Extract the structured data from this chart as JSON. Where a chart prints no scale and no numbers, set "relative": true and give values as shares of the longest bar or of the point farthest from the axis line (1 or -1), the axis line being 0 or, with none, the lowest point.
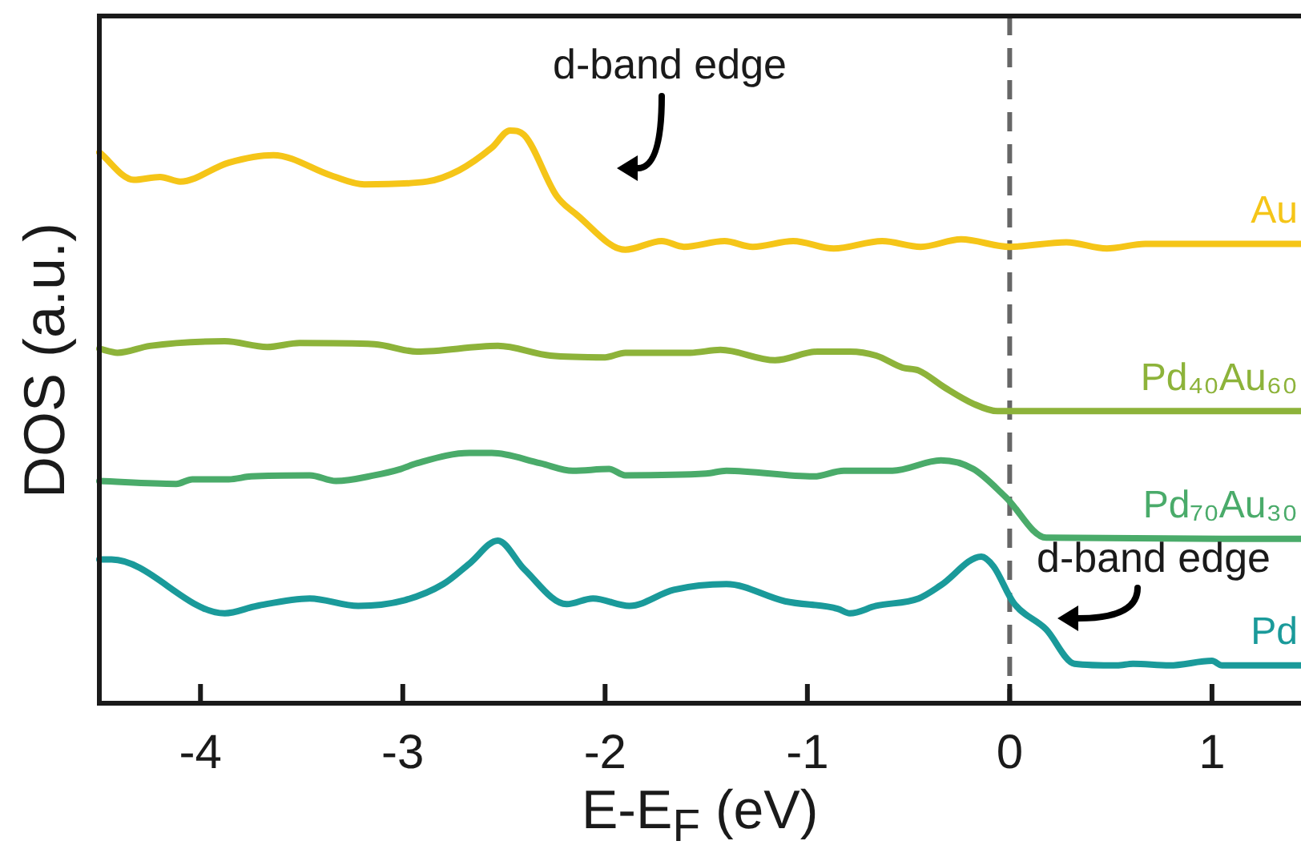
{
  "chart_data": {
    "type": "line",
    "relative": true,
    "xlabel": "E-E$_{F}$ (eV)",
    "ylabel": "DOS (a.u.)",
    "xlim": [
      -4.5,
      1.44
    ],
    "xticks": [
      -4,
      -3,
      -2,
      -1,
      0,
      1
    ],
    "legend": false,
    "marker": "none",
    "line_style": "solid",
    "series": [
      {
        "name": "Au",
        "color": "#f5c518",
        "x": [
          -4.5,
          -4.33,
          -4.2,
          -4.1,
          -3.86,
          -3.64,
          -3.35,
          -3.19,
          -2.88,
          -2.72,
          -2.56,
          -2.47,
          -2.4,
          -2.24,
          -2.14,
          -1.9,
          -1.72,
          -1.61,
          -1.41,
          -1.27,
          -1.07,
          -0.87,
          -0.63,
          -0.44,
          -0.24,
          0,
          0.28,
          0.48,
          0.67,
          1.44
        ],
        "values": [
          0.962,
          0.914,
          0.919,
          0.911,
          0.944,
          0.957,
          0.921,
          0.906,
          0.911,
          0.931,
          0.97,
          1.0,
          0.992,
          0.886,
          0.853,
          0.792,
          0.807,
          0.797,
          0.807,
          0.797,
          0.807,
          0.794,
          0.807,
          0.797,
          0.81,
          0.797,
          0.805,
          0.794,
          0.802,
          0.802
        ]
      },
      {
        "name": "Pd₄₀Au₆₀",
        "color": "#8db33a",
        "x": [
          -4.5,
          -4.41,
          -4.25,
          -3.88,
          -3.67,
          -3.51,
          -3.14,
          -2.93,
          -2.53,
          -2.27,
          -2.0,
          -1.9,
          -1.58,
          -1.43,
          -1.16,
          -0.95,
          -0.79,
          -0.66,
          -0.53,
          -0.45,
          -0.32,
          -0.18,
          -0.06,
          1.44
        ],
        "values": [
          0.619,
          0.612,
          0.624,
          0.632,
          0.622,
          0.629,
          0.627,
          0.614,
          0.624,
          0.607,
          0.604,
          0.612,
          0.612,
          0.617,
          0.599,
          0.614,
          0.614,
          0.607,
          0.586,
          0.581,
          0.551,
          0.523,
          0.51,
          0.51
        ]
      },
      {
        "name": "Pd₇₀Au₃₀",
        "color": "#4aab6a",
        "x": [
          -4.5,
          -4.12,
          -4.04,
          -3.86,
          -3.75,
          -3.46,
          -3.33,
          -3.14,
          -3.01,
          -2.93,
          -2.67,
          -2.56,
          -2.32,
          -2.16,
          -1.98,
          -1.9,
          -1.5,
          -1.4,
          -0.97,
          -0.82,
          -0.58,
          -0.34,
          -0.18,
          -0.02,
          0.18,
          1.44
        ],
        "values": [
          0.388,
          0.383,
          0.391,
          0.391,
          0.396,
          0.398,
          0.388,
          0.398,
          0.409,
          0.419,
          0.437,
          0.437,
          0.419,
          0.406,
          0.409,
          0.398,
          0.401,
          0.406,
          0.396,
          0.406,
          0.406,
          0.424,
          0.409,
          0.36,
          0.289,
          0.287
        ]
      },
      {
        "name": "Pd",
        "color": "#1a9a9a",
        "x": [
          -4.5,
          -4.44,
          -3.88,
          -3.72,
          -3.46,
          -3.22,
          -2.99,
          -2.8,
          -2.67,
          -2.53,
          -2.4,
          -2.19,
          -2.06,
          -1.88,
          -1.66,
          -1.4,
          -1.11,
          -0.85,
          -0.79,
          -0.66,
          -0.45,
          -0.34,
          -0.14,
          -0.08,
          0.02,
          0.18,
          0.32,
          0.53,
          0.61,
          0.79,
          1.0,
          1.05,
          1.44
        ],
        "values": [
          0.251,
          0.251,
          0.157,
          0.17,
          0.183,
          0.17,
          0.18,
          0.208,
          0.244,
          0.284,
          0.234,
          0.173,
          0.183,
          0.17,
          0.198,
          0.208,
          0.178,
          0.165,
          0.157,
          0.17,
          0.183,
          0.206,
          0.256,
          0.239,
          0.175,
          0.129,
          0.069,
          0.066,
          0.069,
          0.066,
          0.074,
          0.066,
          0.066
        ]
      }
    ],
    "ref_lines": [
      {
        "axis": "x",
        "value": 0,
        "color": "#666666",
        "line_style": "dashed"
      }
    ],
    "annotations": [
      "d-band edge",
      "d-band edge"
    ]
  }
}
